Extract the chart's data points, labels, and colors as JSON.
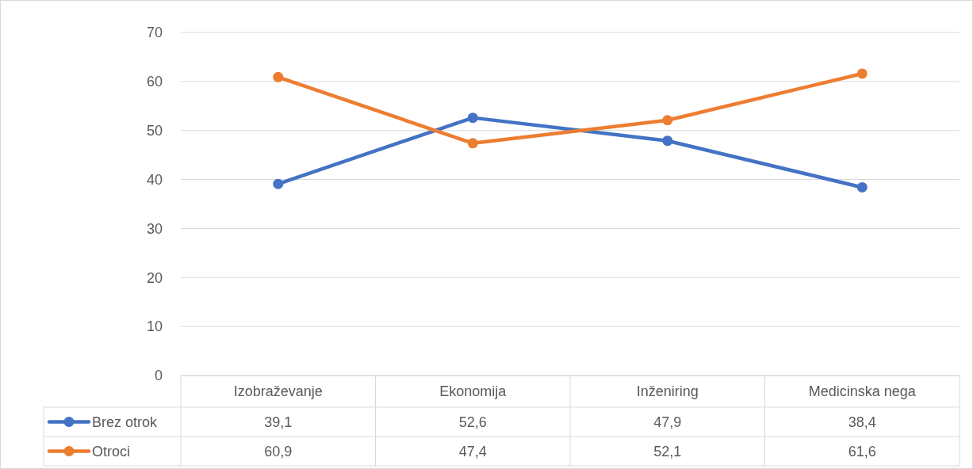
{
  "chart_data": {
    "type": "line",
    "categories": [
      "Izobraževanje",
      "Ekonomija",
      "Inženiring",
      "Medicinska nega"
    ],
    "series": [
      {
        "name": "Brez otrok",
        "color": "#4472c4",
        "values": [
          39.1,
          52.6,
          47.9,
          38.4
        ],
        "value_labels": [
          "39,1",
          "52,6",
          "47,9",
          "38,4"
        ]
      },
      {
        "name": "Otroci",
        "color": "#ed7d31",
        "values": [
          60.9,
          47.4,
          52.1,
          61.6
        ],
        "value_labels": [
          "60,9",
          "47,4",
          "52,1",
          "61,6"
        ]
      }
    ],
    "ylim": [
      0,
      70
    ],
    "yticks": [
      0,
      10,
      20,
      30,
      40,
      50,
      60,
      70
    ],
    "grid": "y",
    "legend": "bottom",
    "marker": "circle",
    "line_style": "solid"
  }
}
